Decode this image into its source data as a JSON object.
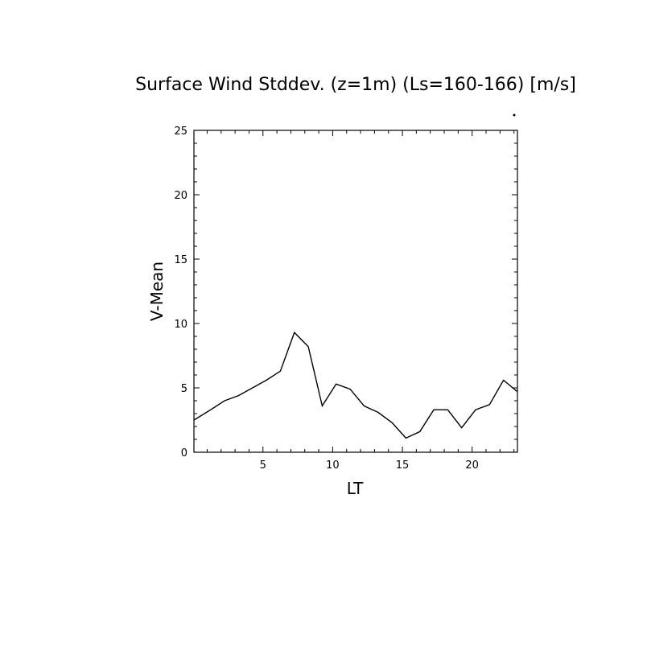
{
  "chart_data": {
    "type": "line",
    "title": "Surface Wind Stddev. (z=1m) (Ls=160-166) [m/s]",
    "xlabel": "LT",
    "ylabel": "V-Mean",
    "xlim": [
      0.05,
      23.25
    ],
    "ylim": [
      0,
      25
    ],
    "xticks": [
      5,
      10,
      15,
      20
    ],
    "yticks": [
      0,
      5,
      10,
      15,
      20,
      25
    ],
    "xtick_labels": [
      "5",
      "10",
      "15",
      "20"
    ],
    "ytick_labels": [
      "0",
      "5",
      "10",
      "15",
      "20",
      "25"
    ],
    "grid": false,
    "legend": false,
    "series": [
      {
        "x": [
          0.05,
          1.25,
          2.25,
          3.25,
          4.25,
          5.25,
          6.25,
          7.25,
          8.25,
          9.25,
          10.25,
          11.25,
          12.25,
          13.25,
          14.25,
          15.25,
          16.25,
          17.25,
          18.25,
          19.25,
          20.25,
          21.25,
          22.25,
          23.25
        ],
        "y": [
          2.5,
          3.3,
          4.0,
          4.4,
          5.0,
          5.6,
          6.3,
          9.3,
          8.2,
          3.6,
          5.3,
          4.9,
          3.6,
          3.1,
          2.3,
          1.1,
          1.6,
          3.3,
          3.3,
          1.9,
          3.3,
          3.7,
          5.6,
          4.7
        ],
        "color": "#000000"
      }
    ]
  }
}
